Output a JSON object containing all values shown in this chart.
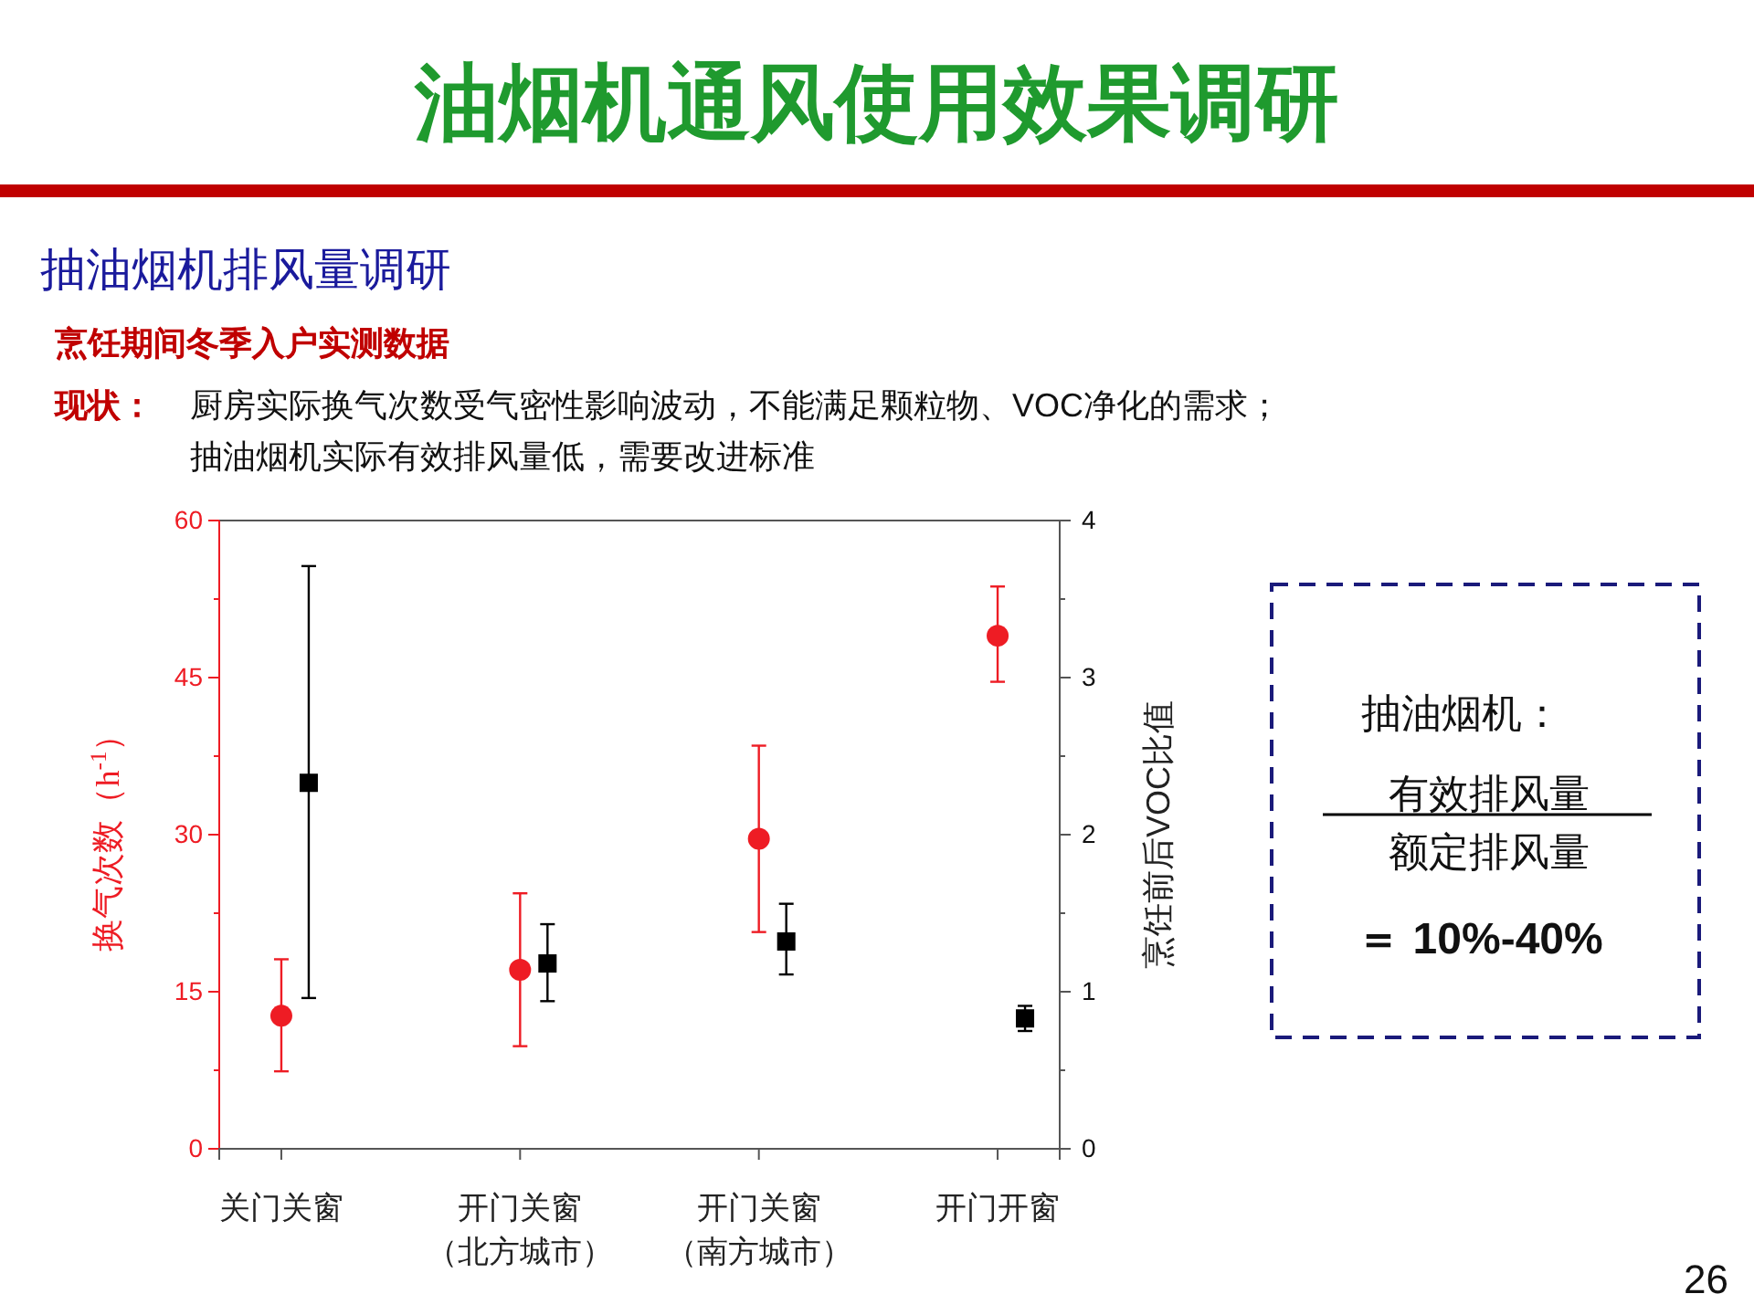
{
  "chart_data": {
    "type": "scatter",
    "title": "油烟机通风使用效果调研",
    "subtitle": "抽油烟机排风量调研",
    "ylabel": "换气次数（h$^{-1}$）",
    "y2label": "烹饪前后VOC比值",
    "categories": [
      "关门关窗",
      "开门关窗（北方城市）",
      "开门关窗（南方城市）",
      "开门开窗"
    ],
    "series": [
      {
        "color": "#ee1c24",
        "marker": "circle",
        "values": [
          12.7,
          17.1,
          29.6,
          49.0
        ],
        "errors": [
          [
            7.4,
            18.1
          ],
          [
            9.8,
            24.4
          ],
          [
            20.7,
            38.5
          ],
          [
            44.6,
            53.7
          ]
        ]
      },
      {
        "color": "#000000",
        "marker": "square",
        "axis": "y2",
        "values": [
          2.33,
          1.18,
          1.32,
          0.83
        ],
        "errors": [
          [
            0.96,
            3.71
          ],
          [
            0.94,
            1.43
          ],
          [
            1.11,
            1.56
          ],
          [
            0.75,
            0.91
          ]
        ]
      }
    ],
    "ylim": [
      0,
      60
    ],
    "yticks": [
      0,
      {
        "value": 7.5,
        "label": null
      },
      15,
      {
        "value": 22.5,
        "label": null
      },
      30,
      {
        "value": 37.5,
        "label": null
      },
      45,
      {
        "value": 52.5,
        "label": null
      },
      60
    ],
    "y2lim": [
      0,
      4
    ],
    "y2ticks": [
      0,
      {
        "value": 0.5,
        "label": null
      },
      1,
      {
        "value": 1.5,
        "label": null
      },
      2,
      {
        "value": 2.5,
        "label": null
      },
      3,
      {
        "value": 3.5,
        "label": null
      },
      4
    ],
    "grid": false,
    "annotations": [
      "烹饪期间冬季入户实测数据",
      "现状：",
      "厨房实际换气次数受气密性影响波动，不能满足颗粒物、VOC净化的需求；",
      "抽油烟机实际有效排风量低，需要改进标准",
      "抽油烟机：",
      "有效排风量",
      "额定排风量",
      "＝ 10%-40%",
      "26"
    ]
  }
}
